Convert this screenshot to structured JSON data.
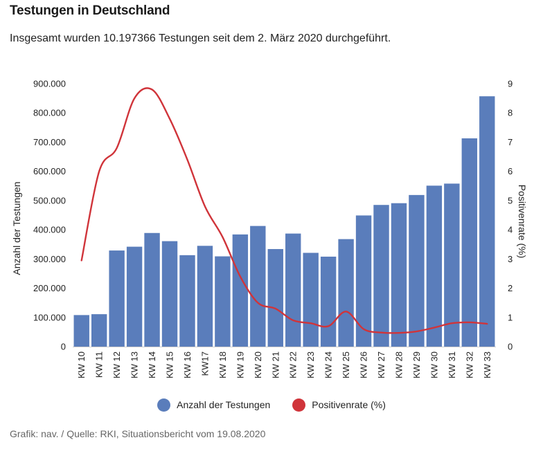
{
  "header": {
    "title": "Testungen in Deutschland",
    "subtitle": "Insgesamt wurden 10.197366 Testungen seit dem 2. März 2020 durchgeführt."
  },
  "legend": {
    "bars_label": "Anzahl der Testungen",
    "line_label": "Positivenrate (%)"
  },
  "footer": {
    "source": "Grafik: nav. / Quelle: RKI, Situationsbericht vom 19.08.2020"
  },
  "colors": {
    "bar": "#5a7dbb",
    "line": "#d0343a"
  },
  "chart_data": {
    "type": "bar",
    "categories": [
      "KW 10",
      "KW 11",
      "KW 12",
      "KW 13",
      "KW 14",
      "KW 15",
      "KW 16",
      "KW17",
      "KW 18",
      "KW 19",
      "KW 20",
      "KW 21",
      "KW 22",
      "KW 23",
      "KW 24",
      "KW 25",
      "KW 26",
      "KW 27",
      "KW 28",
      "KW 29",
      "KW 30",
      "KW 31",
      "KW 32",
      "KW 33"
    ],
    "ylabel": "Anzahl der Testungen",
    "y2label": "Positivenrate (%)",
    "ylim": [
      0,
      900000
    ],
    "y2lim": [
      0,
      9
    ],
    "y_ticks": [
      "0",
      "100.000",
      "200.000",
      "300.000",
      "400.000",
      "500.000",
      "600.000",
      "700.000",
      "800.000",
      "900.000"
    ],
    "y2_ticks": [
      "0",
      "1",
      "2",
      "3",
      "4",
      "5",
      "6",
      "7",
      "8",
      "9"
    ],
    "grid": false,
    "legend_position": "bottom",
    "series": [
      {
        "name": "Anzahl der Testungen",
        "kind": "bar",
        "axis": "left",
        "values": [
          108000,
          111000,
          329000,
          342000,
          389000,
          361000,
          313000,
          345000,
          309000,
          384000,
          413000,
          334000,
          387000,
          321000,
          308000,
          368000,
          449000,
          485000,
          491000,
          519000,
          551000,
          558000,
          713000,
          857000
        ]
      },
      {
        "name": "Positivenrate (%)",
        "kind": "line",
        "axis": "right",
        "values": [
          2.95,
          6.0,
          6.8,
          8.5,
          8.8,
          7.8,
          6.4,
          4.8,
          3.75,
          2.4,
          1.5,
          1.3,
          0.9,
          0.8,
          0.7,
          1.2,
          0.6,
          0.48,
          0.47,
          0.52,
          0.65,
          0.8,
          0.83,
          0.78
        ]
      }
    ]
  }
}
